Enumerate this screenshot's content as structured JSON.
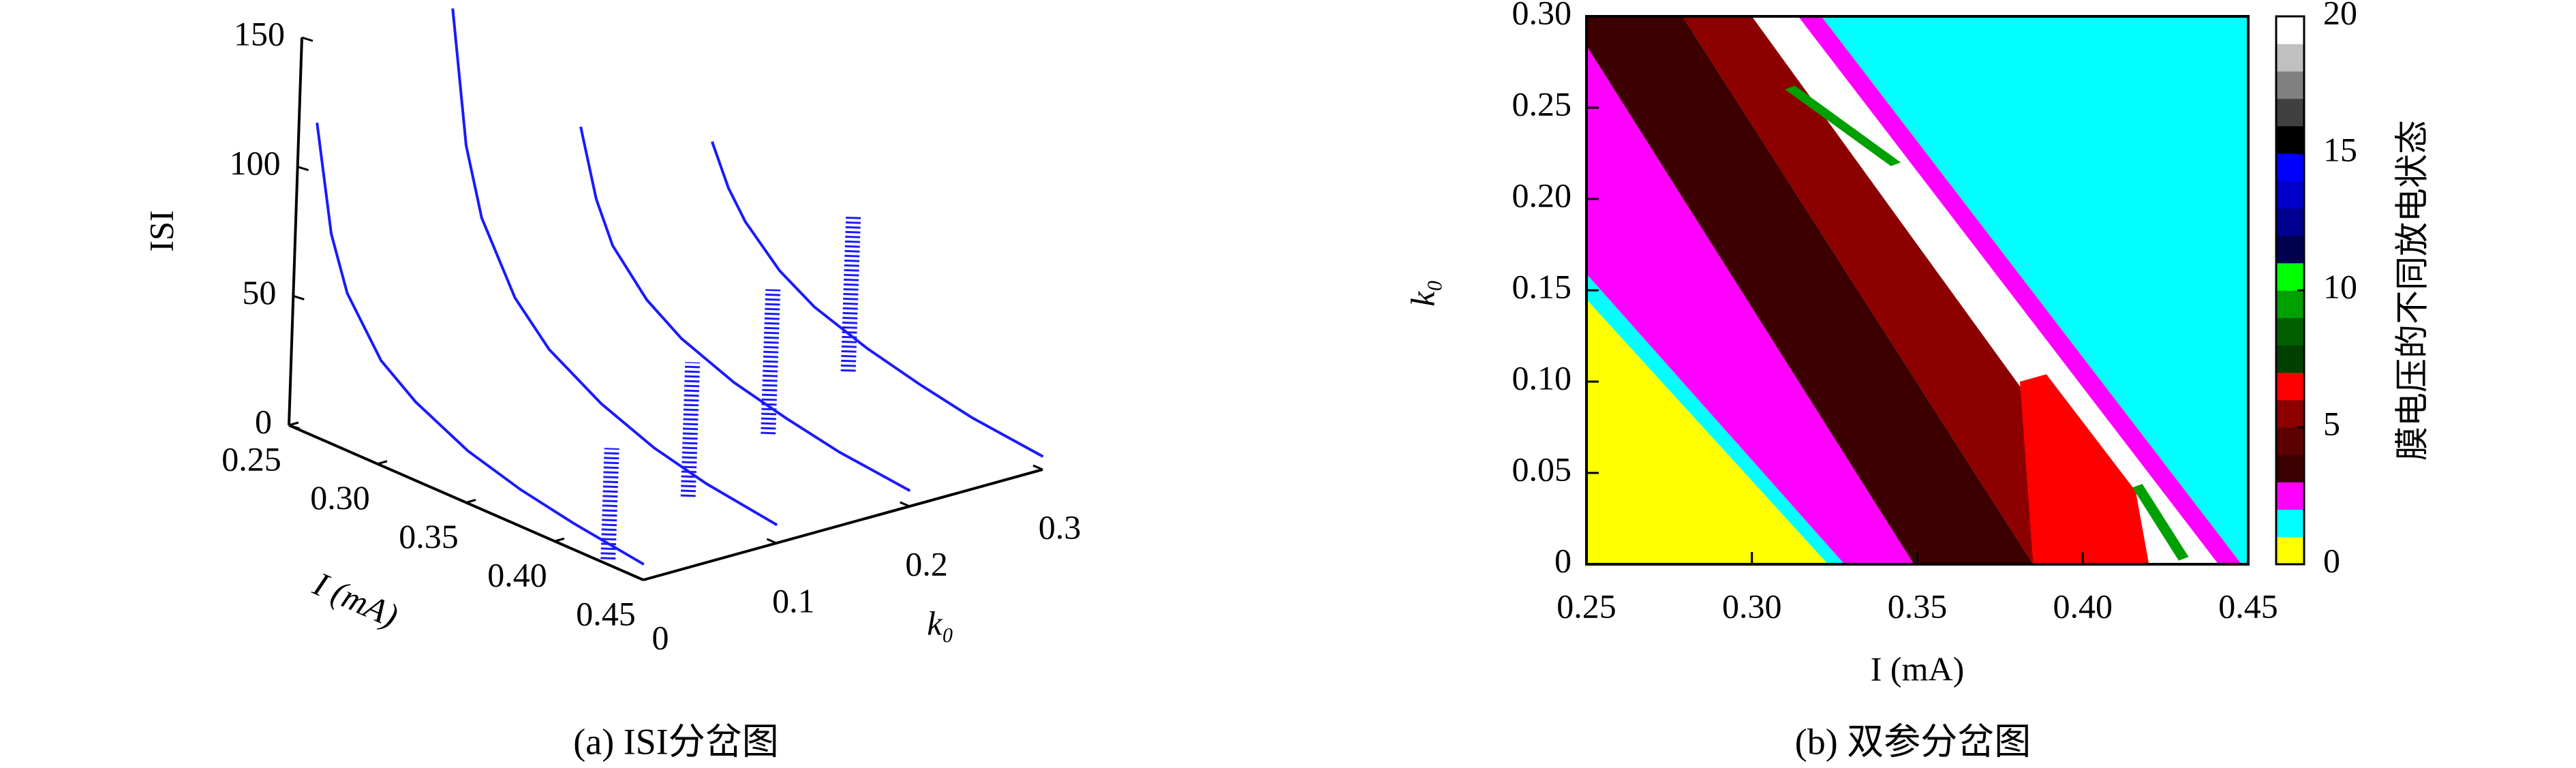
{
  "chart_data": [
    {
      "type": "isi_3d",
      "caption": "(a) ISI分岔图",
      "zlabel": "ISI",
      "xlabel": "I (mA)",
      "ylabel": "k₀",
      "color": "#1a1aff",
      "xlim": [
        0.25,
        0.45
      ],
      "xticks": [
        0.25,
        {
          "value": 0.3,
          "label": "0.30"
        },
        0.35,
        {
          "value": 0.4,
          "label": "0.40"
        },
        0.45
      ],
      "ylim": [
        0,
        0.3
      ],
      "yticks": [
        0,
        0.1,
        0.2,
        0.3
      ],
      "zlim": [
        0,
        150
      ],
      "zticks": [
        0,
        50,
        100,
        150
      ],
      "slices": [
        {
          "k0": 0,
          "x": [
            0.26,
            0.27,
            0.28,
            0.3,
            0.32,
            0.35,
            0.38,
            0.41,
            0.45
          ],
          "values": [
            120,
            80,
            60,
            40,
            30,
            20,
            14,
            10,
            6
          ]
        },
        {
          "k0": 0.1,
          "x": [
            0.26,
            0.27,
            0.28,
            0.3,
            0.32,
            0.35,
            0.38,
            0.41,
            0.45
          ],
          "values": [
            150,
            100,
            75,
            50,
            36,
            24,
            16,
            11,
            7
          ]
        },
        {
          "k0": 0.2,
          "x": [
            0.26,
            0.27,
            0.28,
            0.3,
            0.32,
            0.35,
            0.38,
            0.41,
            0.45
          ],
          "values": [
            90,
            65,
            50,
            35,
            26,
            18,
            13,
            9,
            6
          ]
        },
        {
          "k0": 0.3,
          "x": [
            0.26,
            0.27,
            0.28,
            0.3,
            0.32,
            0.35,
            0.38,
            0.41,
            0.45
          ],
          "values": [
            70,
            55,
            45,
            32,
            24,
            17,
            12,
            8,
            5
          ]
        }
      ],
      "clusters": [
        {
          "k0": 0,
          "x": 0.43,
          "lo": 2,
          "hi": 45
        },
        {
          "k0": 0.1,
          "x": 0.4,
          "lo": 3,
          "hi": 55
        },
        {
          "k0": 0.2,
          "x": 0.37,
          "lo": 4,
          "hi": 60
        },
        {
          "k0": 0.3,
          "x": 0.34,
          "lo": 5,
          "hi": 65
        }
      ]
    },
    {
      "type": "heatmap",
      "caption": "(b) 双参分岔图",
      "xlabel": "I (mA)",
      "ylabel": "k₀",
      "xlim": [
        0.25,
        0.45
      ],
      "xticks": [
        0.25,
        {
          "value": 0.3,
          "label": "0.30"
        },
        0.35,
        {
          "value": 0.4,
          "label": "0.40"
        },
        0.45
      ],
      "ylim": [
        0,
        0.3
      ],
      "yticks": [
        0,
        0.05,
        {
          "value": 0.1,
          "label": "0.10"
        },
        0.15,
        {
          "value": 0.2,
          "label": "0.20"
        },
        0.25,
        {
          "value": 0.3,
          "label": "0.30"
        }
      ],
      "colorbar": {
        "label": "膜电压的不同放电状态",
        "lim": [
          0,
          20
        ],
        "ticks": [
          0,
          5,
          10,
          15,
          20
        ],
        "colors": [
          "#ffff00",
          "#00ffff",
          "#ff00ff",
          "#3c0000",
          "#5c0000",
          "#8c0000",
          "#ff0000",
          "#004000",
          "#006000",
          "#00a000",
          "#00ff00",
          "#000050",
          "#000090",
          "#0000c8",
          "#0000ff",
          "#000000",
          "#404040",
          "#808080",
          "#c0c0c0",
          "#ffffff"
        ]
      },
      "regions": [
        {
          "state": 0,
          "points": [
            [
              0.25,
              0
            ],
            [
              0.25,
              0.145
            ],
            [
              0.323,
              0
            ]
          ]
        },
        {
          "state": 1,
          "points": [
            [
              0.25,
              0.145
            ],
            [
              0.25,
              0.159
            ],
            [
              0.328,
              0
            ],
            [
              0.323,
              0
            ]
          ]
        },
        {
          "state": 2,
          "points": [
            [
              0.25,
              0.159
            ],
            [
              0.25,
              0.284
            ],
            [
              0.349,
              0
            ],
            [
              0.328,
              0
            ]
          ]
        },
        {
          "state": 3,
          "points": [
            [
              0.25,
              0.284
            ],
            [
              0.25,
              0.3
            ],
            [
              0.279,
              0.3
            ],
            [
              0.385,
              0
            ],
            [
              0.349,
              0
            ]
          ]
        },
        {
          "state": 5,
          "points": [
            [
              0.279,
              0.3
            ],
            [
              0.3,
              0.3
            ],
            [
              0.42,
              0
            ],
            [
              0.385,
              0
            ]
          ]
        },
        {
          "state": 19,
          "points": [
            [
              0.3,
              0.3
            ],
            [
              0.314,
              0.3
            ],
            [
              0.441,
              0
            ],
            [
              0.42,
              0
            ]
          ]
        },
        {
          "state": 6,
          "points": [
            [
              0.381,
              0.1
            ],
            [
              0.389,
              0.104
            ],
            [
              0.416,
              0.04
            ],
            [
              0.42,
              0
            ],
            [
              0.385,
              0
            ]
          ]
        },
        {
          "state": 9,
          "points": [
            [
              0.31,
              0.26
            ],
            [
              0.313,
              0.262
            ],
            [
              0.345,
              0.22
            ],
            [
              0.342,
              0.218
            ]
          ]
        },
        {
          "state": 9,
          "points": [
            [
              0.415,
              0.042
            ],
            [
              0.418,
              0.044
            ],
            [
              0.432,
              0.004
            ],
            [
              0.429,
              0.002
            ]
          ]
        },
        {
          "state": 2,
          "points": [
            [
              0.314,
              0.3
            ],
            [
              0.321,
              0.3
            ],
            [
              0.448,
              0
            ],
            [
              0.441,
              0
            ]
          ]
        },
        {
          "state": 1,
          "points": [
            [
              0.321,
              0.3
            ],
            [
              0.45,
              0.3
            ],
            [
              0.45,
              0
            ],
            [
              0.448,
              0
            ]
          ]
        }
      ]
    }
  ]
}
